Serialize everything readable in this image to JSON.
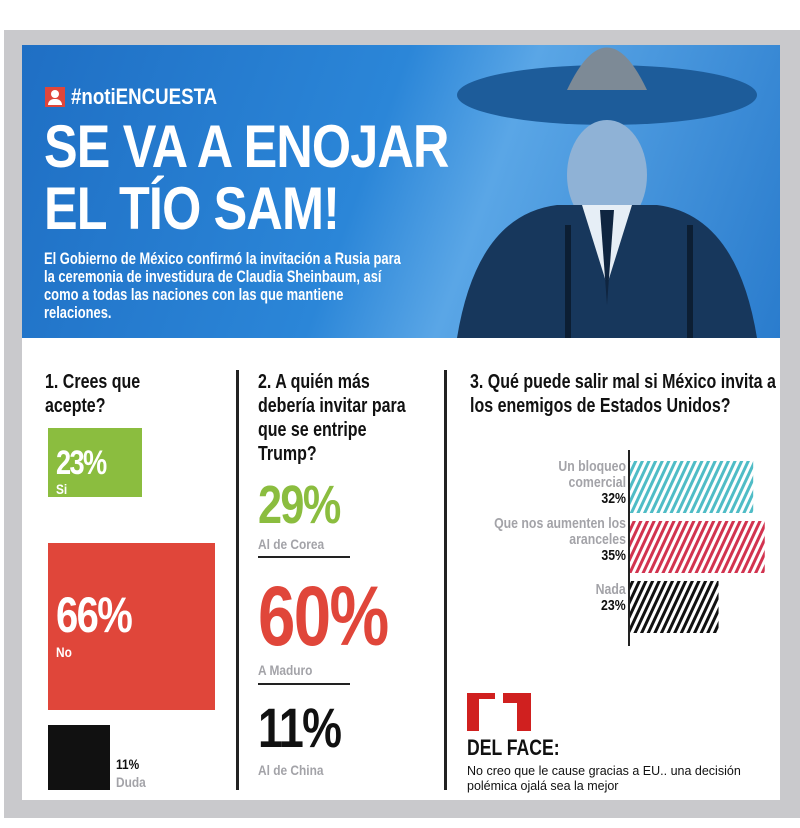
{
  "header": {
    "hashtag": "#notiENCUESTA",
    "headline_line1": "SE VA A ENOJAR",
    "headline_line2": "EL TÍO SAM!",
    "subtitle": "El Gobierno de México confirmó la invitación a Rusia para la ceremonia de investidura de Claudia Sheinbaum, así como a todas las naciones con las que mantiene relaciones.",
    "accent_color": "#1f6fc4",
    "image": "man-at-podium-with-sombrero"
  },
  "chart_data": [
    {
      "type": "bar",
      "title": "1. Crees que acepte?",
      "categories": [
        "Si",
        "No",
        "Duda"
      ],
      "values": [
        23,
        66,
        11
      ],
      "labels": [
        "23%",
        "66%",
        "11%"
      ],
      "colors": [
        "#8bbd3f",
        "#e0463a",
        "#111111"
      ]
    },
    {
      "type": "table",
      "title": "2. A quién más debería invitar para que se entripe Trump?",
      "categories": [
        "Al de Corea",
        "A Maduro",
        "Al de China"
      ],
      "values": [
        29,
        60,
        11
      ],
      "labels": [
        "29%",
        "60%",
        "11%"
      ],
      "colors": [
        "#8bbd3f",
        "#e0463a",
        "#111111"
      ]
    },
    {
      "type": "bar",
      "orientation": "horizontal",
      "title": "3. Qué puede salir mal si México invita a los enemigos de Estados Unidos?",
      "categories": [
        "Un bloqueo comercial",
        "Que nos aumenten los aranceles",
        "Nada"
      ],
      "values": [
        32,
        35,
        23
      ],
      "labels": [
        "32%",
        "35%",
        "23%"
      ],
      "colors": [
        "#4fbcc6",
        "#d2334f",
        "#111111"
      ],
      "pattern": "diagonal-stripes"
    }
  ],
  "quote": {
    "title": "DEL FACE:",
    "text": "No creo que le cause gracias a EU.. una decisión polémica ojalá sea la mejor",
    "icon": "quote-mark-icon",
    "color": "#d0201f"
  }
}
